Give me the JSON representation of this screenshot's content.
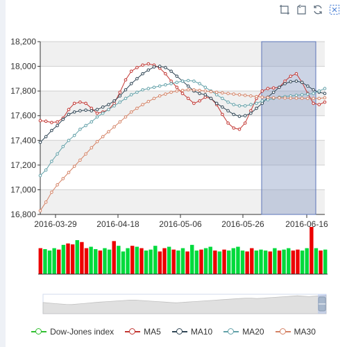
{
  "toolbox": {
    "icons": [
      "zoom-area-icon",
      "zoom-reset-icon",
      "restore-icon",
      "data-zoom-select-icon"
    ]
  },
  "legend": {
    "items": [
      {
        "label": "Dow-Jones index",
        "color": "#2fbf2f"
      },
      {
        "label": "MA5",
        "color": "#c23531"
      },
      {
        "label": "MA10",
        "color": "#2f4554"
      },
      {
        "label": "MA20",
        "color": "#61a0a8"
      },
      {
        "label": "MA30",
        "color": "#d48265"
      }
    ]
  },
  "colors": {
    "up": "#ec0000",
    "down": "#00da3c",
    "selection": "#8fa0c6",
    "band": "#f0f0f0"
  },
  "chart_data": {
    "type": "line",
    "title": "",
    "xlabel": "",
    "ylabel": "",
    "ylim": [
      16800,
      18200
    ],
    "yticks": [
      "16,800",
      "17,000",
      "17,200",
      "17,400",
      "17,600",
      "17,800",
      "18,000",
      "18,200"
    ],
    "xtick_labels": [
      "2016-03-29",
      "2016-04-18",
      "2016-05-06",
      "2016-05-26",
      "2016-06-16"
    ],
    "grid": true,
    "legend_position": "bottom",
    "selection_range": [
      "2016-06-02",
      "2016-06-16"
    ],
    "series": [
      {
        "name": "MA5",
        "values": [
          17560,
          17555,
          17545,
          17550,
          17580,
          17650,
          17700,
          17710,
          17700,
          17660,
          17620,
          17630,
          17650,
          17700,
          17790,
          17890,
          17960,
          17990,
          18010,
          18020,
          18010,
          17985,
          17940,
          17880,
          17830,
          17780,
          17740,
          17700,
          17720,
          17750,
          17740,
          17690,
          17610,
          17540,
          17500,
          17490,
          17540,
          17640,
          17740,
          17800,
          17820,
          17825,
          17830,
          17880,
          17920,
          17940,
          17870,
          17780,
          17700,
          17690,
          17710
        ]
      },
      {
        "name": "MA10",
        "values": [
          17385,
          17430,
          17480,
          17520,
          17570,
          17610,
          17630,
          17640,
          17645,
          17640,
          17650,
          17670,
          17690,
          17720,
          17760,
          17810,
          17860,
          17900,
          17940,
          17970,
          17995,
          18000,
          17990,
          17960,
          17920,
          17880,
          17840,
          17800,
          17780,
          17770,
          17740,
          17700,
          17670,
          17640,
          17610,
          17595,
          17600,
          17620,
          17660,
          17700,
          17750,
          17790,
          17830,
          17860,
          17875,
          17880,
          17870,
          17840,
          17810,
          17790,
          17780
        ]
      },
      {
        "name": "MA20",
        "values": [
          17115,
          17160,
          17230,
          17290,
          17350,
          17400,
          17440,
          17490,
          17520,
          17550,
          17590,
          17620,
          17650,
          17680,
          17710,
          17740,
          17770,
          17790,
          17810,
          17820,
          17830,
          17840,
          17850,
          17860,
          17870,
          17880,
          17885,
          17880,
          17860,
          17830,
          17800,
          17770,
          17740,
          17710,
          17690,
          17680,
          17680,
          17690,
          17700,
          17720,
          17730,
          17740,
          17750,
          17755,
          17760,
          17765,
          17770,
          17775,
          17780,
          17800,
          17820
        ]
      },
      {
        "name": "MA30",
        "values": [
          16830,
          16900,
          16980,
          17040,
          17090,
          17140,
          17190,
          17240,
          17290,
          17340,
          17390,
          17430,
          17470,
          17510,
          17550,
          17590,
          17630,
          17660,
          17690,
          17715,
          17740,
          17760,
          17775,
          17790,
          17800,
          17805,
          17810,
          17810,
          17805,
          17800,
          17795,
          17790,
          17785,
          17780,
          17775,
          17770,
          17765,
          17760,
          17755,
          17750,
          17748,
          17745,
          17745,
          17743,
          17742,
          17742,
          17741,
          17740,
          17740,
          17740,
          17745
        ]
      },
      {
        "name": "Dow-Jones index",
        "values": []
      }
    ],
    "volume_bars": {
      "values": [
        0.55,
        0.53,
        0.5,
        0.55,
        0.52,
        0.62,
        0.65,
        0.63,
        0.72,
        0.68,
        0.55,
        0.58,
        0.53,
        0.5,
        0.55,
        0.52,
        0.7,
        0.6,
        0.48,
        0.55,
        0.6,
        0.58,
        0.55,
        0.5,
        0.52,
        0.6,
        0.48,
        0.55,
        0.58,
        0.52,
        0.5,
        0.55,
        0.48,
        0.62,
        0.5,
        0.52,
        0.55,
        0.58,
        0.5,
        0.48,
        0.52,
        0.5,
        0.55,
        0.58,
        0.5,
        0.48,
        0.55,
        0.5,
        0.52,
        0.5,
        0.48,
        0.55,
        0.5,
        0.52,
        0.55,
        0.5,
        0.52,
        0.5,
        0.55,
        1.0,
        0.55,
        0.5,
        0.52
      ],
      "up": [
        1,
        0,
        0,
        0,
        1,
        0,
        1,
        1,
        0,
        1,
        1,
        0,
        0,
        1,
        0,
        0,
        1,
        0,
        0,
        0,
        1,
        0,
        1,
        0,
        0,
        0,
        1,
        1,
        0,
        1,
        0,
        0,
        1,
        0,
        0,
        1,
        0,
        0,
        1,
        0,
        1,
        0,
        0,
        0,
        0,
        1,
        1,
        0,
        0,
        0,
        1,
        0,
        1,
        0,
        0,
        1,
        1,
        0,
        0,
        1,
        0,
        1,
        0
      ]
    },
    "overview_area": {
      "values": [
        0.58,
        0.55,
        0.52,
        0.5,
        0.48,
        0.47,
        0.5,
        0.52,
        0.55,
        0.58,
        0.6,
        0.62,
        0.64,
        0.66,
        0.68,
        0.7,
        0.7,
        0.68,
        0.66,
        0.64,
        0.62,
        0.6,
        0.58,
        0.56,
        0.58,
        0.6,
        0.62,
        0.64,
        0.66,
        0.68,
        0.7,
        0.72,
        0.74,
        0.76,
        0.78,
        0.8,
        0.8,
        0.78,
        0.8,
        0.82,
        0.84,
        0.86,
        0.88,
        0.9,
        0.92,
        0.9,
        0.88,
        0.9,
        0.92,
        0.94
      ]
    }
  }
}
